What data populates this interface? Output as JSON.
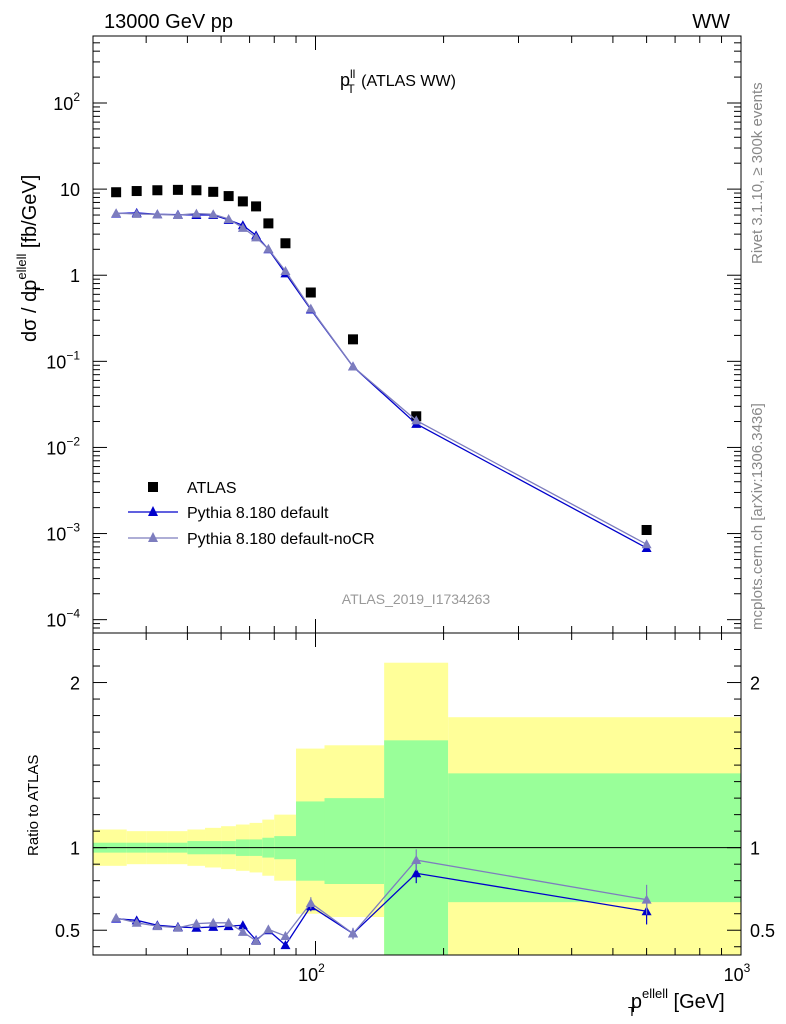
{
  "header": {
    "left": "13000 GeV pp",
    "right": "WW"
  },
  "side_labels": {
    "rivet": "Rivet 3.1.10, ≥ 300k events",
    "mcplots": "mcplots.cern.ch [arXiv:1306.3436]"
  },
  "chart_data": [
    {
      "type": "scatter",
      "panel": "main",
      "title": {
        "main": "p",
        "sup": "ll",
        "sub": "T",
        "rest": " (ATLAS WW)"
      },
      "ylabel": {
        "pre": "dσ / dp",
        "sup": "ellell",
        "sub": "T",
        "post": " [fb/GeV]"
      },
      "xscale": "log",
      "yscale": "log",
      "xlim": [
        30,
        1000
      ],
      "ylim": [
        7e-05,
        600
      ],
      "yticks": [
        {
          "value": 0.0001,
          "base": "10",
          "exp": "−4"
        },
        {
          "value": 0.001,
          "base": "10",
          "exp": "−3"
        },
        {
          "value": 0.01,
          "base": "10",
          "exp": "−2"
        },
        {
          "value": 0.1,
          "base": "10",
          "exp": "−1"
        },
        {
          "value": 1,
          "base": "1",
          "exp": ""
        },
        {
          "value": 10,
          "base": "10",
          "exp": ""
        },
        {
          "value": 100,
          "base": "10",
          "exp": "2"
        }
      ],
      "watermark": "ATLAS_2019_I1734263",
      "legend_position": "bottom-left",
      "series": [
        {
          "name": "ATLAS",
          "style": "data",
          "color": "#000000",
          "x": [
            34,
            38,
            42.5,
            47.5,
            52.5,
            57.5,
            62.5,
            67.5,
            72.5,
            77.5,
            85,
            97.5,
            122.5,
            172.5,
            600
          ],
          "y": [
            9.2,
            9.5,
            9.7,
            9.8,
            9.7,
            9.3,
            8.3,
            7.2,
            6.3,
            4.0,
            2.35,
            0.63,
            0.18,
            0.023,
            0.0011
          ]
        },
        {
          "name": "Pythia 8.180 default",
          "style": "line-triangle",
          "color": "#0000cc",
          "x": [
            34,
            38,
            42.5,
            47.5,
            52.5,
            57.5,
            62.5,
            67.5,
            72.5,
            77.5,
            85,
            97.5,
            122.5,
            172.5,
            600
          ],
          "y": [
            5.2,
            5.3,
            5.1,
            5.05,
            5.0,
            5.0,
            4.4,
            3.8,
            2.9,
            2.0,
            1.05,
            0.4,
            0.087,
            0.0188,
            0.00068
          ]
        },
        {
          "name": "Pythia 8.180 default-noCR",
          "style": "line-triangle",
          "color": "#7d7dbe",
          "x": [
            34,
            38,
            42.5,
            47.5,
            52.5,
            57.5,
            62.5,
            67.5,
            72.5,
            77.5,
            85,
            97.5,
            122.5,
            172.5,
            600
          ],
          "y": [
            5.25,
            5.15,
            5.1,
            5.0,
            5.2,
            5.1,
            4.5,
            3.55,
            2.75,
            2.02,
            1.12,
            0.41,
            0.087,
            0.0206,
            0.00075
          ]
        }
      ]
    },
    {
      "type": "line",
      "panel": "ratio",
      "ylabel": "Ratio to ATLAS",
      "xlabel": {
        "pre": "p",
        "sup": "ellell",
        "sub": "T",
        "post": " [GeV]"
      },
      "xscale": "log",
      "xlim": [
        30,
        1000
      ],
      "ylim": [
        0.35,
        2.3
      ],
      "yticks": [
        0.5,
        1,
        2
      ],
      "xticks": [
        {
          "value": 100,
          "base": "10",
          "exp": "2"
        },
        {
          "value": 1000,
          "base": "10",
          "exp": "3"
        }
      ],
      "bands": [
        {
          "x0": 30,
          "x1": 36,
          "stat": [
            0.97,
            1.03
          ],
          "total": [
            0.89,
            1.11
          ]
        },
        {
          "x0": 36,
          "x1": 40,
          "stat": [
            0.97,
            1.03
          ],
          "total": [
            0.9,
            1.1
          ]
        },
        {
          "x0": 40,
          "x1": 45,
          "stat": [
            0.97,
            1.03
          ],
          "total": [
            0.9,
            1.1
          ]
        },
        {
          "x0": 45,
          "x1": 50,
          "stat": [
            0.97,
            1.03
          ],
          "total": [
            0.9,
            1.1
          ]
        },
        {
          "x0": 50,
          "x1": 55,
          "stat": [
            0.96,
            1.04
          ],
          "total": [
            0.89,
            1.11
          ]
        },
        {
          "x0": 55,
          "x1": 60,
          "stat": [
            0.96,
            1.04
          ],
          "total": [
            0.88,
            1.12
          ]
        },
        {
          "x0": 60,
          "x1": 65,
          "stat": [
            0.96,
            1.04
          ],
          "total": [
            0.87,
            1.13
          ]
        },
        {
          "x0": 65,
          "x1": 70,
          "stat": [
            0.95,
            1.05
          ],
          "total": [
            0.86,
            1.14
          ]
        },
        {
          "x0": 70,
          "x1": 75,
          "stat": [
            0.95,
            1.05
          ],
          "total": [
            0.85,
            1.15
          ]
        },
        {
          "x0": 75,
          "x1": 80,
          "stat": [
            0.94,
            1.06
          ],
          "total": [
            0.83,
            1.17
          ]
        },
        {
          "x0": 80,
          "x1": 90,
          "stat": [
            0.93,
            1.07
          ],
          "total": [
            0.8,
            1.2
          ]
        },
        {
          "x0": 90,
          "x1": 105,
          "stat": [
            0.8,
            1.28
          ],
          "total": [
            0.6,
            1.6
          ]
        },
        {
          "x0": 105,
          "x1": 145,
          "stat": [
            0.78,
            1.3
          ],
          "total": [
            0.58,
            1.62
          ]
        },
        {
          "x0": 145,
          "x1": 205,
          "stat": [
            0.35,
            1.65
          ],
          "total": [
            0.35,
            2.12
          ]
        },
        {
          "x0": 205,
          "x1": 1000,
          "stat": [
            0.67,
            1.45
          ],
          "total": [
            0.35,
            1.79
          ]
        }
      ],
      "series": [
        {
          "name": "Pythia 8.180 default",
          "color": "#0000cc",
          "x": [
            34,
            38,
            42.5,
            47.5,
            52.5,
            57.5,
            62.5,
            67.5,
            72.5,
            77.5,
            85,
            97.5,
            122.5,
            172.5,
            600
          ],
          "y": [
            0.57,
            0.56,
            0.53,
            0.52,
            0.515,
            0.52,
            0.525,
            0.53,
            0.44,
            0.5,
            0.41,
            0.645,
            0.48,
            0.845,
            0.615
          ],
          "err": [
            0.01,
            0.01,
            0.01,
            0.01,
            0.01,
            0.01,
            0.01,
            0.01,
            0.01,
            0.02,
            0.02,
            0.03,
            0.03,
            0.06,
            0.08
          ]
        },
        {
          "name": "Pythia 8.180 default-noCR",
          "color": "#7d7dbe",
          "x": [
            34,
            38,
            42.5,
            47.5,
            52.5,
            57.5,
            62.5,
            67.5,
            72.5,
            77.5,
            85,
            97.5,
            122.5,
            172.5,
            600
          ],
          "y": [
            0.575,
            0.545,
            0.525,
            0.515,
            0.54,
            0.545,
            0.545,
            0.49,
            0.435,
            0.505,
            0.465,
            0.665,
            0.48,
            0.925,
            0.685
          ],
          "err": [
            0.01,
            0.01,
            0.01,
            0.01,
            0.01,
            0.01,
            0.01,
            0.015,
            0.015,
            0.02,
            0.025,
            0.035,
            0.035,
            0.065,
            0.09
          ]
        }
      ]
    }
  ]
}
